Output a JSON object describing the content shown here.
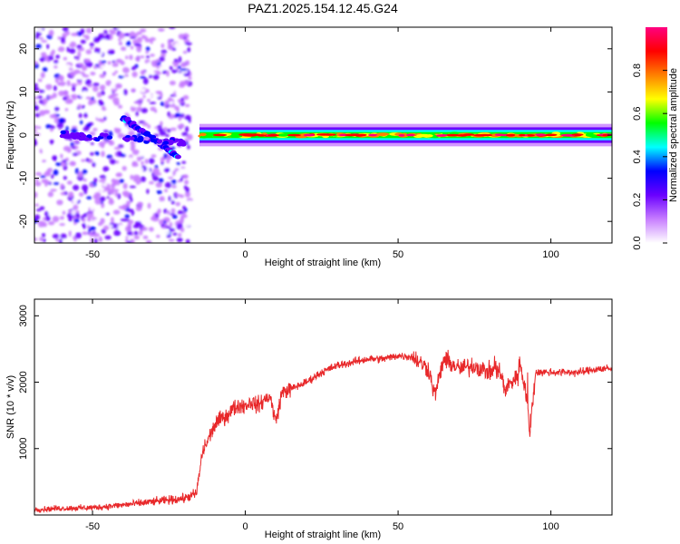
{
  "figure_title": "PAZ1.2025.154.12.45.G24",
  "chart_data": [
    {
      "type": "heatmap",
      "xlabel": "Height of straight line (km)",
      "ylabel": "Frequency (Hz)",
      "xlim": [
        -69,
        120
      ],
      "ylim": [
        -25,
        25
      ],
      "x_ticks": [
        "-50",
        "0",
        "50",
        "100"
      ],
      "x_tick_values": [
        -50,
        0,
        50,
        100
      ],
      "y_ticks": [
        "-20",
        "-10",
        "0",
        "10",
        "20"
      ],
      "y_tick_values": [
        -20,
        -10,
        0,
        10,
        20
      ],
      "colorbar": {
        "label": "Normalized spectral amplitude",
        "range": [
          0,
          1
        ],
        "ticks": [
          "0.0",
          "0.2",
          "0.4",
          "0.6",
          "0.8"
        ],
        "tick_values": [
          0.0,
          0.2,
          0.4,
          0.6,
          0.8
        ],
        "colormap": [
          "#ffffff",
          "#c77dff",
          "#6a00ff",
          "#0000ff",
          "#00ffff",
          "#00ff00",
          "#ffff00",
          "#ff8000",
          "#ff0000",
          "#ff0080"
        ]
      },
      "features": {
        "noise_region_x": [
          -69,
          -18
        ],
        "signal_band_x": [
          -15,
          120
        ],
        "signal_center_hz": 0,
        "signal_halfwidth_hz": 1.5,
        "tilted_feature_x": [
          -40,
          -22
        ],
        "tilted_feature_hz": [
          4,
          -5
        ]
      }
    },
    {
      "type": "line",
      "xlabel": "Height of straight line (km)",
      "ylabel": "SNR (10 * v/v)",
      "xlim": [
        -69,
        120
      ],
      "ylim": [
        0,
        3250
      ],
      "x_ticks": [
        "-50",
        "0",
        "50",
        "100"
      ],
      "x_tick_values": [
        -50,
        0,
        50,
        100
      ],
      "y_ticks": [
        "1000",
        "2000",
        "3000"
      ],
      "y_tick_values": [
        1000,
        2000,
        3000
      ],
      "line_color": "#e8282a",
      "series": [
        {
          "x": [
            -69,
            -60,
            -50,
            -40,
            -30,
            -20,
            -16,
            -14,
            -12,
            -10,
            -8,
            -6,
            -4,
            -2,
            0,
            2,
            4,
            6,
            8,
            10,
            12,
            15,
            20,
            25,
            30,
            35,
            40,
            45,
            50,
            55,
            57,
            60,
            62,
            65,
            70,
            75,
            80,
            83,
            85,
            87,
            89,
            90,
            92,
            93,
            95,
            100,
            105,
            110,
            115,
            120
          ],
          "values": [
            80,
            100,
            110,
            150,
            200,
            250,
            320,
            950,
            1150,
            1350,
            1450,
            1500,
            1600,
            1650,
            1650,
            1700,
            1650,
            1720,
            1800,
            1400,
            1850,
            1900,
            2000,
            2150,
            2250,
            2300,
            2350,
            2350,
            2400,
            2380,
            2300,
            2200,
            1800,
            2350,
            2200,
            2250,
            2150,
            2200,
            1900,
            2000,
            2100,
            2300,
            1800,
            1200,
            2150,
            2150,
            2150,
            2150,
            2200,
            2200
          ]
        }
      ]
    }
  ]
}
